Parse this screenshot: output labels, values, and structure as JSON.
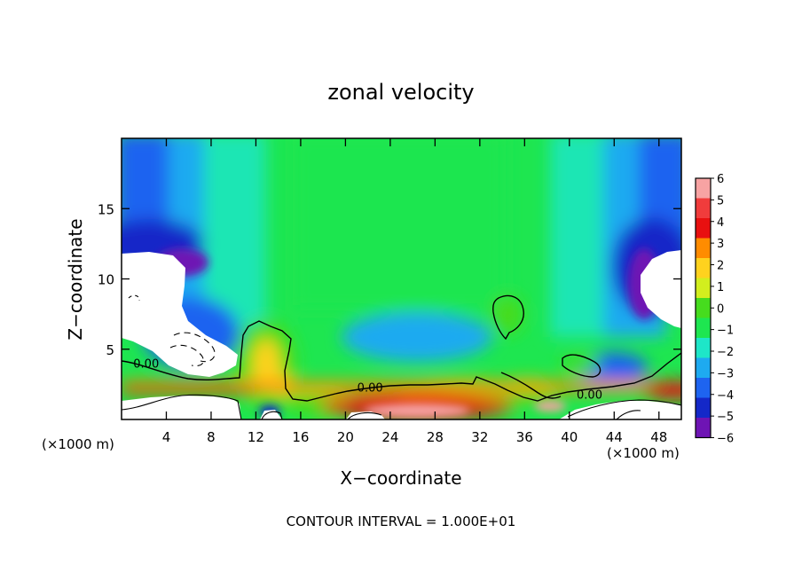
{
  "chart_data": {
    "type": "heatmap",
    "title": "zonal velocity",
    "xlabel": "X−coordinate",
    "ylabel": "Z−coordinate",
    "x_unit_left": "(×1000 m)",
    "x_unit_right": "(×1000 m)",
    "xlim": [
      0,
      50
    ],
    "ylim": [
      0,
      20
    ],
    "x_ticks": [
      4,
      8,
      12,
      16,
      20,
      24,
      28,
      32,
      36,
      40,
      44,
      48
    ],
    "y_ticks": [
      5,
      10,
      15
    ],
    "colorbar": {
      "ticks": [
        6,
        5,
        4,
        3,
        2,
        1,
        0,
        -1,
        -2,
        -3,
        -4,
        -5,
        -6
      ],
      "tick_labels": [
        "6",
        "5",
        "4",
        "3",
        "2",
        "1",
        "0",
        "−1",
        "−2",
        "−3",
        "−4",
        "−5",
        "−6"
      ],
      "colors": [
        "#f7a3a3",
        "#f03c3c",
        "#e81010",
        "#ff8c00",
        "#ffd21e",
        "#d2ee1e",
        "#46dc1e",
        "#1ee650",
        "#1ee6c8",
        "#1eaaf0",
        "#1e64f0",
        "#1428c8",
        "#6e14b4"
      ]
    },
    "contour_labels": [
      {
        "text": "0.00",
        "x": 2.2,
        "z": 4.0
      },
      {
        "text": "0.00",
        "x": 22.2,
        "z": 2.3
      },
      {
        "text": "0.00",
        "x": 41.8,
        "z": 1.8
      }
    ],
    "contour_interval_text": "CONTOUR INTERVAL = 1.000E+01"
  }
}
